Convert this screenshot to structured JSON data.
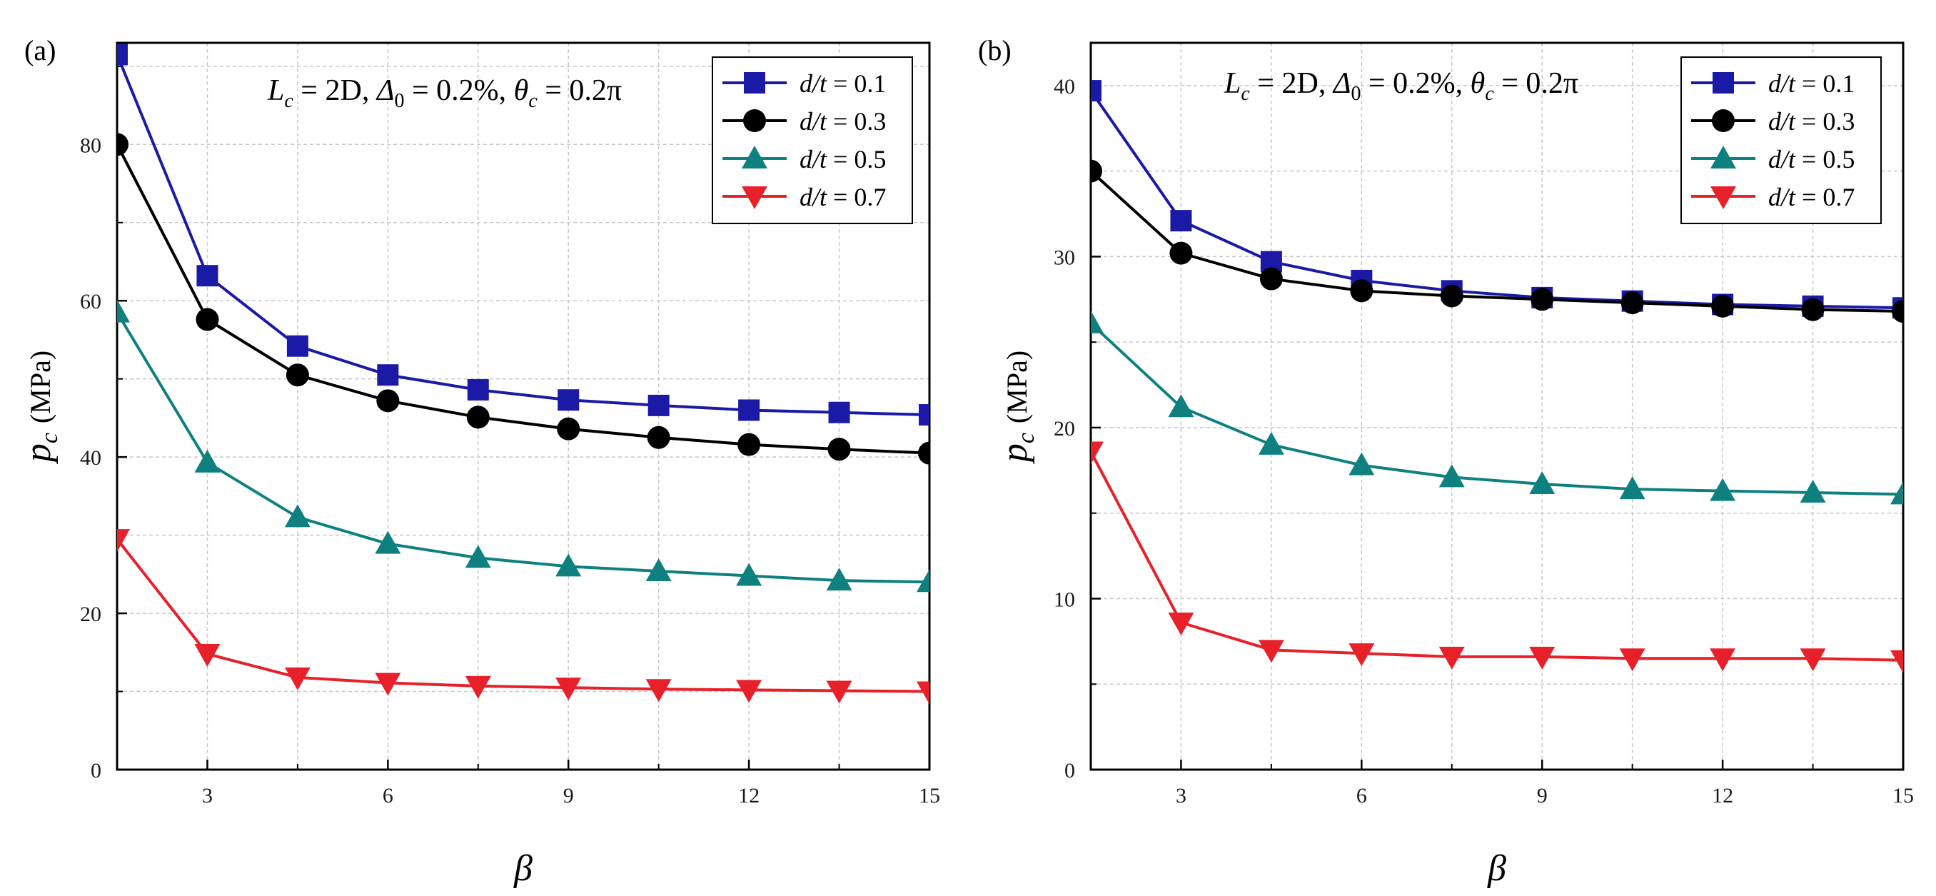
{
  "chart_data": [
    {
      "type": "line",
      "panel_label": "(a)",
      "xlabel": "β",
      "ylabel": "p",
      "ylabel_sub": "c",
      "ylabel_unit": "(MPa)",
      "annotation": {
        "L": "L",
        "L_sub": "c",
        "L_rest": " = 2D,",
        "Delta": "Δ",
        "Delta_sub": "0",
        "Delta_rest": " = 0.2%,",
        "theta": "θ",
        "theta_sub": "c",
        "theta_rest": " = 0.2π"
      },
      "xlim": [
        1.5,
        15
      ],
      "ylim": [
        0,
        93
      ],
      "xticks": [
        3,
        6,
        9,
        12,
        15
      ],
      "xtick_labels": [
        "3",
        "6",
        "9",
        "12",
        "15"
      ],
      "xgrid_minor": [
        4.5,
        7.5,
        10.5,
        13.5
      ],
      "yticks": [
        0,
        20,
        40,
        60,
        80
      ],
      "ytick_labels": [
        "0",
        "20",
        "40",
        "60",
        "80"
      ],
      "ygrid_minor": [
        10,
        30,
        50,
        70,
        90
      ],
      "x": [
        1.5,
        3,
        4.5,
        6,
        7.5,
        9,
        10.5,
        12,
        13.5,
        15
      ],
      "series": [
        {
          "name_pre": "d/t",
          "name_post": " = 0.1",
          "color": "#1a1aa6",
          "marker": "square",
          "values": [
            91.5,
            63.2,
            54.2,
            50.5,
            48.6,
            47.3,
            46.6,
            46.0,
            45.7,
            45.4
          ]
        },
        {
          "name_pre": "d/t",
          "name_post": " = 0.3",
          "color": "#000000",
          "marker": "circle",
          "values": [
            80.0,
            57.6,
            50.5,
            47.2,
            45.1,
            43.6,
            42.5,
            41.6,
            41.0,
            40.5
          ]
        },
        {
          "name_pre": "d/t",
          "name_post": " = 0.5",
          "color": "#0f8080",
          "marker": "triangle-up",
          "values": [
            58.5,
            39.3,
            32.3,
            28.9,
            27.1,
            26.0,
            25.4,
            24.8,
            24.2,
            24.0
          ]
        },
        {
          "name_pre": "d/t",
          "name_post": " = 0.7",
          "color": "#e8202a",
          "marker": "triangle-down",
          "values": [
            29.5,
            14.8,
            11.8,
            11.1,
            10.7,
            10.5,
            10.3,
            10.2,
            10.1,
            10.0
          ]
        }
      ]
    },
    {
      "type": "line",
      "panel_label": "(b)",
      "xlabel": "β",
      "ylabel": "p",
      "ylabel_sub": "c",
      "ylabel_unit": "(MPa)",
      "annotation": {
        "L": "L",
        "L_sub": "c",
        "L_rest": " = 2D,",
        "Delta": "Δ",
        "Delta_sub": "0",
        "Delta_rest": " = 0.2%,",
        "theta": "θ",
        "theta_sub": "c",
        "theta_rest": " = 0.2π"
      },
      "xlim": [
        1.5,
        15
      ],
      "ylim": [
        0,
        42.5
      ],
      "xticks": [
        3,
        6,
        9,
        12,
        15
      ],
      "xtick_labels": [
        "3",
        "6",
        "9",
        "12",
        "15"
      ],
      "xgrid_minor": [
        4.5,
        7.5,
        10.5,
        13.5
      ],
      "yticks": [
        0,
        10,
        20,
        30,
        40
      ],
      "ytick_labels": [
        "0",
        "10",
        "20",
        "30",
        "40"
      ],
      "ygrid_minor": [
        5,
        15,
        25,
        35
      ],
      "x": [
        1.5,
        3,
        4.5,
        6,
        7.5,
        9,
        10.5,
        12,
        13.5,
        15
      ],
      "series": [
        {
          "name_pre": "d/t",
          "name_post": " = 0.1",
          "color": "#1a1aa6",
          "marker": "square",
          "values": [
            39.7,
            32.1,
            29.7,
            28.6,
            28.0,
            27.6,
            27.4,
            27.2,
            27.1,
            27.0
          ]
        },
        {
          "name_pre": "d/t",
          "name_post": " = 0.3",
          "color": "#000000",
          "marker": "circle",
          "values": [
            35.0,
            30.2,
            28.7,
            28.0,
            27.7,
            27.5,
            27.3,
            27.1,
            26.9,
            26.8
          ]
        },
        {
          "name_pre": "d/t",
          "name_post": " = 0.5",
          "color": "#0f8080",
          "marker": "triangle-up",
          "values": [
            26.1,
            21.2,
            19.0,
            17.8,
            17.1,
            16.7,
            16.4,
            16.3,
            16.2,
            16.1
          ]
        },
        {
          "name_pre": "d/t",
          "name_post": " = 0.7",
          "color": "#e8202a",
          "marker": "triangle-down",
          "values": [
            18.6,
            8.6,
            7.0,
            6.8,
            6.6,
            6.6,
            6.5,
            6.5,
            6.5,
            6.4
          ]
        }
      ]
    }
  ]
}
